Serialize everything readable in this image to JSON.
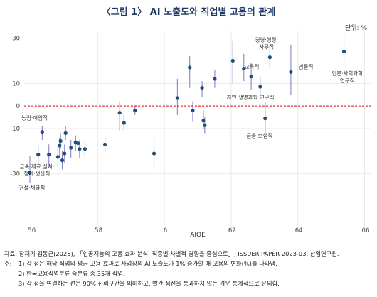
{
  "title": "〈그림 1〉 AI 노출도와 직업별 고용의 관계",
  "unit_label": "단위: %",
  "chart_data": {
    "type": "scatter",
    "xlabel": "AIOE",
    "ylabel": "",
    "xlim": [
      0.558,
      0.662
    ],
    "ylim": [
      -53,
      33
    ],
    "x_ticks": [
      0.56,
      0.58,
      0.6,
      0.62,
      0.64,
      0.66
    ],
    "x_tick_labels": [
      ".56",
      ".58",
      ".6",
      ".62",
      ".64",
      ".66"
    ],
    "y_ticks": [
      30,
      10,
      0,
      -10,
      -30
    ],
    "y_tick_labels": [
      "30",
      "10",
      "0",
      "-10",
      "-30"
    ],
    "zero_line_color": "#e0333a",
    "point_color": "#1f4e79",
    "ci_color": "#8b82c8",
    "grid": true,
    "points": [
      {
        "x": 0.5597,
        "y": -29.5,
        "lo": -34,
        "hi": -22
      },
      {
        "x": 0.5622,
        "y": -21.5,
        "lo": -26,
        "hi": -18
      },
      {
        "x": 0.5634,
        "y": -11.5,
        "lo": -15,
        "hi": -9
      },
      {
        "x": 0.5654,
        "y": -21.5,
        "lo": -26,
        "hi": -17
      },
      {
        "x": 0.5681,
        "y": -22.5,
        "lo": -27,
        "hi": -18
      },
      {
        "x": 0.5686,
        "y": -17.5,
        "lo": -22,
        "hi": -14
      },
      {
        "x": 0.5689,
        "y": -15.5,
        "lo": -19,
        "hi": -12
      },
      {
        "x": 0.5694,
        "y": -24.0,
        "lo": -28,
        "hi": -20
      },
      {
        "x": 0.5701,
        "y": -21.0,
        "lo": -25,
        "hi": -17
      },
      {
        "x": 0.5704,
        "y": -12.0,
        "lo": -15,
        "hi": -9
      },
      {
        "x": 0.572,
        "y": -18.5,
        "lo": -23,
        "hi": -15
      },
      {
        "x": 0.5734,
        "y": -16.0,
        "lo": -20,
        "hi": -13
      },
      {
        "x": 0.5741,
        "y": -16.5,
        "lo": -20,
        "hi": -13
      },
      {
        "x": 0.5746,
        "y": -19.0,
        "lo": -23,
        "hi": -15
      },
      {
        "x": 0.5762,
        "y": -19.0,
        "lo": -23,
        "hi": -15
      },
      {
        "x": 0.5822,
        "y": -17.0,
        "lo": -21,
        "hi": -13
      },
      {
        "x": 0.5866,
        "y": -3.0,
        "lo": -11,
        "hi": 2
      },
      {
        "x": 0.5879,
        "y": -7.5,
        "lo": -11,
        "hi": -4
      },
      {
        "x": 0.5912,
        "y": -2.0,
        "lo": -4,
        "hi": 0
      },
      {
        "x": 0.5969,
        "y": -21.0,
        "lo": -29,
        "hi": -14
      },
      {
        "x": 0.6039,
        "y": 3.5,
        "lo": -4,
        "hi": 12
      },
      {
        "x": 0.6076,
        "y": 17.0,
        "lo": 8,
        "hi": 22
      },
      {
        "x": 0.6085,
        "y": -2.0,
        "lo": -7,
        "hi": 2
      },
      {
        "x": 0.6113,
        "y": 8.0,
        "lo": 4,
        "hi": 11
      },
      {
        "x": 0.6117,
        "y": -6.5,
        "lo": -10,
        "hi": -2
      },
      {
        "x": 0.6121,
        "y": -8.5,
        "lo": -12,
        "hi": -5
      },
      {
        "x": 0.6151,
        "y": 12.0,
        "lo": 8,
        "hi": 16
      },
      {
        "x": 0.6205,
        "y": 20.0,
        "lo": 10,
        "hi": 29
      },
      {
        "x": 0.6238,
        "y": 16.5,
        "lo": 11,
        "hi": 23
      },
      {
        "x": 0.626,
        "y": 13.0,
        "lo": 7,
        "hi": 19
      },
      {
        "x": 0.6287,
        "y": 8.5,
        "lo": 4,
        "hi": 13
      },
      {
        "x": 0.6302,
        "y": -5.5,
        "lo": -13,
        "hi": 2
      },
      {
        "x": 0.6316,
        "y": 21.5,
        "lo": 17,
        "hi": 27
      },
      {
        "x": 0.6379,
        "y": 15.0,
        "lo": 5,
        "hi": 27
      },
      {
        "x": 0.6538,
        "y": 24.0,
        "lo": 18,
        "hi": 31
      }
    ],
    "annotations": [
      {
        "lines": [
          "경영·행정·",
          "사무직"
        ],
        "x": 0.6306,
        "y": 28.5
      },
      {
        "lines": [
          "교육직"
        ],
        "x": 0.6262,
        "y": 16.5
      },
      {
        "lines": [
          "자연·생명과학 연구직"
        ],
        "x": 0.6258,
        "y": 3.0
      },
      {
        "lines": [
          "금융·보험직"
        ],
        "x": 0.6285,
        "y": -14.0
      },
      {
        "lines": [
          "법률직"
        ],
        "x": 0.6424,
        "y": 16.5
      },
      {
        "lines": [
          "인문·사회과학",
          "연구직"
        ],
        "x": 0.6548,
        "y": 13.5
      },
      {
        "lines": [
          "농림·어업직"
        ],
        "x": 0.5611,
        "y": -6.0
      },
      {
        "lines": [
          "금속·재료 설치·",
          "정비·생산직"
        ],
        "x": 0.5618,
        "y": -27.5
      },
      {
        "lines": [
          "건설·채굴직"
        ],
        "x": 0.5603,
        "y": -37.0
      }
    ]
  },
  "notes": {
    "source_label": "자료: ",
    "source": "장재기·김동근(2025), 「인공지능의 고용 효과 분석: 직종별 차별적 영향을 중심으로」, ISSUER PAPER 2023-03, 산업연구원.",
    "note_label": "주: ",
    "items": [
      "1) 각 점은 해당 직업의 평균 고용 효과로 사업장의 AI 노출도가 1% 증가할 때 고용의 변화(%)를 나타냄.",
      "2) 한국고용직업분류 중분류 총 35개 직업.",
      "3) 각 점을 연결하는 선은 90% 신뢰구간을 의미하고, 빨간 점선을 통과하지 않는 경우 통계적으로 유의함."
    ]
  }
}
